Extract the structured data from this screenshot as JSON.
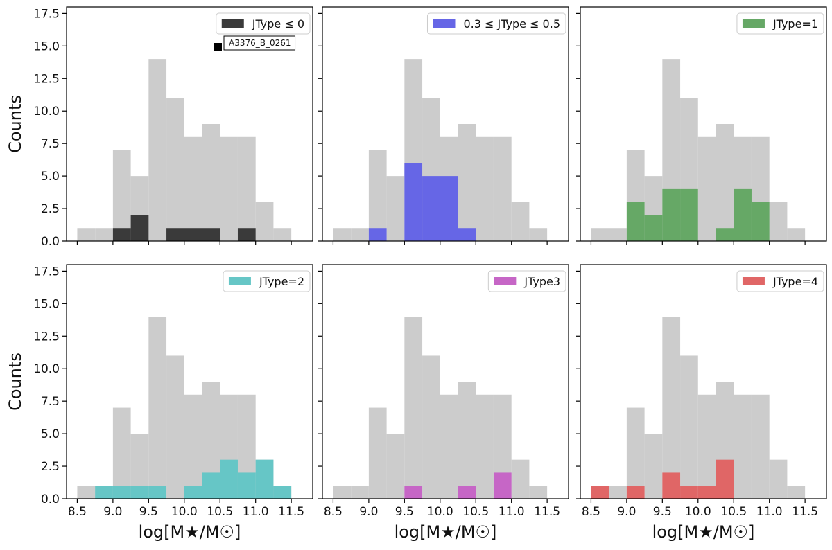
{
  "chart_data": {
    "type": "bar",
    "bin_edges": [
      8.5,
      8.75,
      9.0,
      9.25,
      9.5,
      9.75,
      10.0,
      10.25,
      10.5,
      10.75,
      11.0,
      11.25,
      11.5
    ],
    "background_series": {
      "name": "All",
      "color": "#cccccc",
      "values": [
        1,
        1,
        7,
        5,
        14,
        11,
        8,
        9,
        8,
        8,
        3,
        1
      ]
    },
    "xlabel": "log[M★/M☉]",
    "ylabel": "Counts",
    "xlim": [
      8.35,
      11.8
    ],
    "ylim": [
      0,
      18
    ],
    "xticks": [
      "8.5",
      "9.0",
      "9.5",
      "10.0",
      "10.5",
      "11.0",
      "11.5"
    ],
    "yticks": [
      "0.0",
      "2.5",
      "5.0",
      "7.5",
      "10.0",
      "12.5",
      "15.0",
      "17.5"
    ],
    "panels": [
      {
        "legend": "JType ≤ 0",
        "color": "#3a3a3a",
        "values": [
          0,
          0,
          1,
          2,
          0,
          1,
          1,
          1,
          0,
          1,
          0,
          0
        ],
        "annotation": {
          "text": "A3376_B_0261"
        }
      },
      {
        "legend": "0.3 ≤ JType ≤ 0.5",
        "color": "#6666e6",
        "values": [
          0,
          0,
          1,
          0,
          6,
          5,
          5,
          1,
          0,
          0,
          0,
          0
        ]
      },
      {
        "legend": "JType=1",
        "color": "#66a866",
        "values": [
          0,
          0,
          3,
          2,
          4,
          4,
          0,
          1,
          4,
          3,
          0,
          0
        ]
      },
      {
        "legend": "JType=2",
        "color": "#66c6c6",
        "values": [
          0,
          1,
          1,
          1,
          1,
          0,
          1,
          2,
          3,
          2,
          3,
          1
        ]
      },
      {
        "legend": "JType3",
        "color": "#c666c6",
        "values": [
          0,
          0,
          0,
          0,
          1,
          0,
          0,
          1,
          0,
          2,
          0,
          0
        ]
      },
      {
        "legend": "JType=4",
        "color": "#e06666",
        "values": [
          1,
          0,
          1,
          0,
          2,
          1,
          1,
          3,
          0,
          0,
          0,
          0
        ]
      }
    ]
  }
}
